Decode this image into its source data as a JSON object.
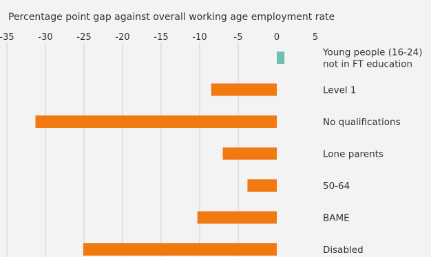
{
  "chart_data": {
    "type": "bar",
    "orientation": "horizontal",
    "title": "Percentage point gap against overall working age employment rate",
    "xlabel": "",
    "ylabel": "",
    "xlim": [
      -35,
      5
    ],
    "x_ticks": [
      "-35",
      "-30",
      "-25",
      "-20",
      "-15",
      "-10",
      "-5",
      "0",
      "5"
    ],
    "grid": "vertical",
    "categories": [
      [
        "Young people (16-24)",
        "not in FT education"
      ],
      [
        "Level 1"
      ],
      [
        "No qualifications"
      ],
      [
        "Lone parents"
      ],
      [
        "50-64"
      ],
      [
        "BAME"
      ],
      [
        "Disabled"
      ]
    ],
    "values": [
      1.0,
      -8.5,
      -31.3,
      -7.0,
      -3.8,
      -10.3,
      -25.1
    ],
    "colors": {
      "positive": "#6cc1b0",
      "negative": "#f07a10",
      "grid": "#cfcfcf",
      "background": "#f3f3f3"
    }
  }
}
